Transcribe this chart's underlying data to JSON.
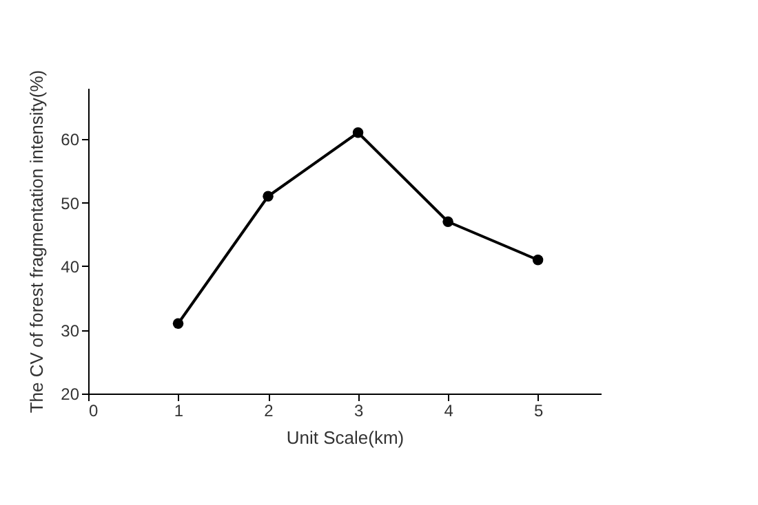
{
  "chart_data": {
    "type": "line",
    "xlabel": "Unit Scale(km)",
    "ylabel": "The CV of forest fragmentation intensity(%)",
    "x": [
      1,
      2,
      3,
      4,
      5
    ],
    "series": [
      {
        "color": "#000000",
        "values": [
          31,
          51,
          61,
          47,
          41
        ]
      }
    ],
    "xlim": [
      0,
      5.7
    ],
    "xticks": [
      0,
      1,
      2,
      3,
      4,
      5
    ],
    "ylim": [
      20,
      68
    ],
    "yticks": [
      20,
      30,
      40,
      50,
      60
    ],
    "marker": "circle",
    "line_style": "solid",
    "grid": false,
    "legend": false
  }
}
